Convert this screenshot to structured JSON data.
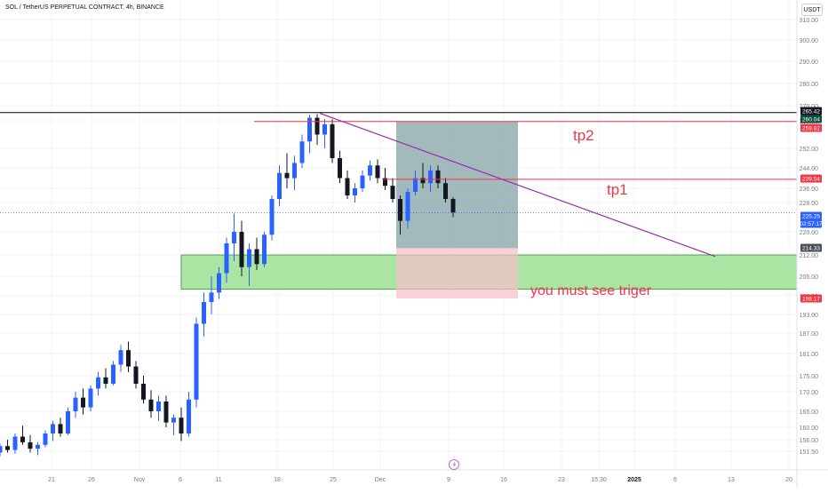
{
  "header": {
    "title": "SOL / TetherUS PERPETUAL CONTRACT, 4h, BINANCE",
    "currency": "USDT"
  },
  "colors": {
    "up": "#2962ff",
    "down": "#131722",
    "hline_black": "#000000",
    "hline_red": "#f23645",
    "trendline": "#9c27b0",
    "zone_green": "#8fdc84",
    "profit": "#7fa0a4",
    "loss": "#f7bfc8",
    "dotted": "#2962ff",
    "annotation": "#f23645"
  },
  "chart_data": {
    "type": "candlestick",
    "y_axis": {
      "ticks": [
        151.5,
        156.0,
        160.0,
        165.0,
        170.0,
        175.0,
        181.0,
        187.0,
        193.0,
        199.0,
        205.0,
        212.0,
        220.0,
        228.0,
        236.0,
        244.0,
        252.0,
        260.0,
        270.0,
        280.0,
        290.0,
        300.0,
        310.0
      ]
    },
    "x_axis": {
      "ticks": [
        "21",
        "26",
        "Nov",
        "6",
        "11",
        "18",
        "25",
        "Dec",
        "9",
        "16",
        "23",
        "15:30",
        "2025",
        "6",
        "13",
        "20"
      ]
    },
    "price_labels": [
      {
        "value": 265.42,
        "text": "265.42",
        "bg": "#131722",
        "fg": "#ffffff"
      },
      {
        "value": 260.04,
        "text": "260.04",
        "bg": "#0b4f3b",
        "fg": "#ffffff"
      },
      {
        "value": 259.82,
        "text": "259.82",
        "bg": "#f23645",
        "fg": "#ffffff"
      },
      {
        "value": 239.54,
        "text": "239.54",
        "bg": "#f23645",
        "fg": "#ffffff"
      },
      {
        "value": 225.25,
        "text": "225.25",
        "bg": "#2962ff",
        "fg": "#ffffff",
        "sub": "02:57:17"
      },
      {
        "value": 214.33,
        "text": "214.33",
        "bg": "#4a4e5a",
        "fg": "#ffffff"
      },
      {
        "value": 198.17,
        "text": "198.17",
        "bg": "#f23645",
        "fg": "#ffffff"
      }
    ],
    "horizontal_lines": [
      {
        "value": 265.42,
        "color": "#000000"
      },
      {
        "value": 259.82,
        "color": "#f23645"
      },
      {
        "value": 239.54,
        "color": "#f23645"
      }
    ],
    "current_price": 225.25,
    "trendline": {
      "from": {
        "x": "23 Nov",
        "y": 265.0
      },
      "to": {
        "x": "10 Jan",
        "y": 211.5
      }
    },
    "zone": {
      "top": 212.0,
      "bottom": 201.0
    },
    "position": {
      "entry": 214.33,
      "target": 259.82,
      "stop": 198.17
    },
    "annotations": [
      {
        "text": "tp2",
        "y": 255.0
      },
      {
        "text": "tp1",
        "y": 235.0
      },
      {
        "text": "you must see triger",
        "y": 201.5
      }
    ],
    "candles": [
      {
        "o": 151.0,
        "h": 154.5,
        "l": 149.5,
        "c": 153.5
      },
      {
        "o": 153.5,
        "h": 156.0,
        "l": 151.0,
        "c": 152.0
      },
      {
        "o": 152.0,
        "h": 158.0,
        "l": 150.5,
        "c": 157.0
      },
      {
        "o": 157.0,
        "h": 160.5,
        "l": 154.0,
        "c": 155.0
      },
      {
        "o": 155.0,
        "h": 157.5,
        "l": 151.0,
        "c": 152.5
      },
      {
        "o": 152.5,
        "h": 155.0,
        "l": 150.0,
        "c": 154.0
      },
      {
        "o": 154.0,
        "h": 159.0,
        "l": 153.0,
        "c": 158.0
      },
      {
        "o": 158.0,
        "h": 162.0,
        "l": 155.5,
        "c": 161.0
      },
      {
        "o": 161.0,
        "h": 163.0,
        "l": 157.0,
        "c": 158.0
      },
      {
        "o": 158.0,
        "h": 166.0,
        "l": 157.5,
        "c": 165.0
      },
      {
        "o": 165.0,
        "h": 170.0,
        "l": 163.0,
        "c": 168.5
      },
      {
        "o": 168.5,
        "h": 171.0,
        "l": 164.0,
        "c": 166.0
      },
      {
        "o": 166.0,
        "h": 172.0,
        "l": 165.0,
        "c": 171.0
      },
      {
        "o": 171.0,
        "h": 176.0,
        "l": 169.0,
        "c": 174.5
      },
      {
        "o": 174.5,
        "h": 177.0,
        "l": 171.0,
        "c": 172.5
      },
      {
        "o": 172.5,
        "h": 179.0,
        "l": 172.0,
        "c": 178.0
      },
      {
        "o": 178.0,
        "h": 183.5,
        "l": 176.0,
        "c": 182.0
      },
      {
        "o": 182.0,
        "h": 184.5,
        "l": 176.0,
        "c": 177.5
      },
      {
        "o": 177.5,
        "h": 179.0,
        "l": 171.0,
        "c": 172.5
      },
      {
        "o": 172.5,
        "h": 175.0,
        "l": 167.0,
        "c": 168.0
      },
      {
        "o": 168.0,
        "h": 170.5,
        "l": 163.0,
        "c": 165.0
      },
      {
        "o": 165.0,
        "h": 169.0,
        "l": 162.0,
        "c": 167.5
      },
      {
        "o": 167.5,
        "h": 169.0,
        "l": 160.0,
        "c": 161.5
      },
      {
        "o": 161.5,
        "h": 164.0,
        "l": 157.5,
        "c": 163.0
      },
      {
        "o": 163.0,
        "h": 166.0,
        "l": 155.5,
        "c": 158.0
      },
      {
        "o": 158.0,
        "h": 170.0,
        "l": 157.0,
        "c": 168.0
      },
      {
        "o": 168.0,
        "h": 192.0,
        "l": 166.0,
        "c": 190.0
      },
      {
        "o": 190.0,
        "h": 200.0,
        "l": 186.0,
        "c": 197.0
      },
      {
        "o": 197.0,
        "h": 205.0,
        "l": 193.0,
        "c": 200.0
      },
      {
        "o": 200.0,
        "h": 208.0,
        "l": 198.0,
        "c": 206.0
      },
      {
        "o": 206.0,
        "h": 218.0,
        "l": 203.0,
        "c": 216.0
      },
      {
        "o": 216.0,
        "h": 225.0,
        "l": 210.0,
        "c": 220.0
      },
      {
        "o": 220.0,
        "h": 223.0,
        "l": 205.0,
        "c": 208.0
      },
      {
        "o": 208.0,
        "h": 216.0,
        "l": 202.0,
        "c": 214.0
      },
      {
        "o": 214.0,
        "h": 218.0,
        "l": 207.0,
        "c": 209.0
      },
      {
        "o": 209.0,
        "h": 220.0,
        "l": 208.0,
        "c": 219.0
      },
      {
        "o": 219.0,
        "h": 232.0,
        "l": 217.0,
        "c": 230.0
      },
      {
        "o": 230.0,
        "h": 245.0,
        "l": 227.0,
        "c": 242.0
      },
      {
        "o": 242.0,
        "h": 250.0,
        "l": 236.0,
        "c": 240.0
      },
      {
        "o": 240.0,
        "h": 249.0,
        "l": 235.0,
        "c": 246.0
      },
      {
        "o": 246.0,
        "h": 256.0,
        "l": 244.0,
        "c": 254.0
      },
      {
        "o": 254.0,
        "h": 264.0,
        "l": 250.0,
        "c": 262.0
      },
      {
        "o": 262.0,
        "h": 264.5,
        "l": 253.0,
        "c": 256.0
      },
      {
        "o": 256.0,
        "h": 261.0,
        "l": 252.0,
        "c": 259.0
      },
      {
        "o": 259.0,
        "h": 261.0,
        "l": 246.0,
        "c": 248.0
      },
      {
        "o": 248.0,
        "h": 251.0,
        "l": 238.0,
        "c": 240.0
      },
      {
        "o": 240.0,
        "h": 243.0,
        "l": 230.0,
        "c": 232.0
      },
      {
        "o": 232.0,
        "h": 238.0,
        "l": 228.0,
        "c": 236.0
      },
      {
        "o": 236.0,
        "h": 243.0,
        "l": 234.0,
        "c": 241.0
      },
      {
        "o": 241.0,
        "h": 247.0,
        "l": 239.0,
        "c": 245.0
      },
      {
        "o": 245.0,
        "h": 247.5,
        "l": 238.0,
        "c": 240.0
      },
      {
        "o": 240.0,
        "h": 244.0,
        "l": 235.0,
        "c": 237.0
      },
      {
        "o": 237.0,
        "h": 240.0,
        "l": 228.0,
        "c": 230.0
      },
      {
        "o": 230.0,
        "h": 232.0,
        "l": 219.0,
        "c": 223.0
      },
      {
        "o": 223.0,
        "h": 236.0,
        "l": 221.0,
        "c": 234.0
      },
      {
        "o": 234.0,
        "h": 243.0,
        "l": 232.0,
        "c": 240.0
      },
      {
        "o": 240.0,
        "h": 246.0,
        "l": 236.0,
        "c": 238.0
      },
      {
        "o": 238.0,
        "h": 245.0,
        "l": 234.0,
        "c": 243.0
      },
      {
        "o": 243.0,
        "h": 245.0,
        "l": 236.0,
        "c": 238.0
      },
      {
        "o": 238.0,
        "h": 240.0,
        "l": 228.0,
        "c": 230.0
      },
      {
        "o": 230.0,
        "h": 231.0,
        "l": 224.0,
        "c": 225.25
      }
    ]
  }
}
